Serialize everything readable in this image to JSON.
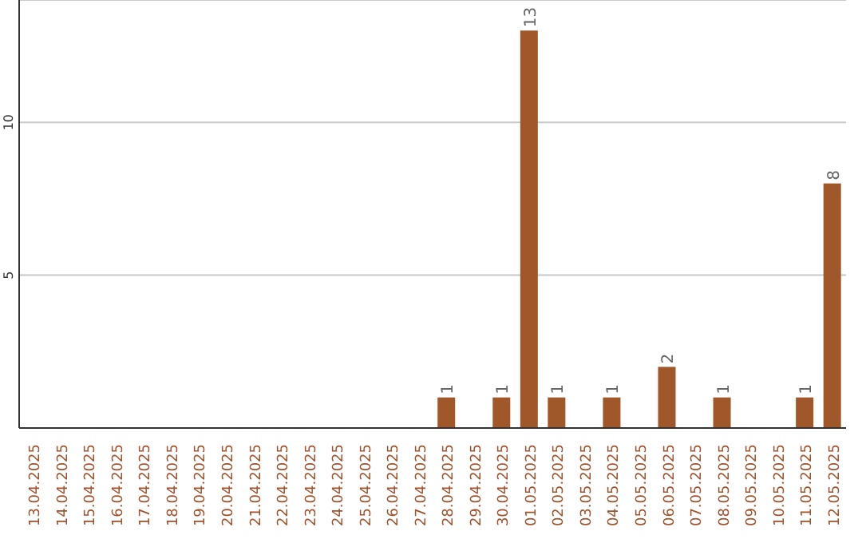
{
  "chart_data": {
    "type": "bar",
    "categories": [
      "13.04.2025",
      "14.04.2025",
      "15.04.2025",
      "16.04.2025",
      "17.04.2025",
      "18.04.2025",
      "19.04.2025",
      "20.04.2025",
      "21.04.2025",
      "22.04.2025",
      "23.04.2025",
      "24.04.2025",
      "25.04.2025",
      "26.04.2025",
      "27.04.2025",
      "28.04.2025",
      "29.04.2025",
      "30.04.2025",
      "01.05.2025",
      "02.05.2025",
      "03.05.2025",
      "04.05.2025",
      "05.05.2025",
      "06.05.2025",
      "07.05.2025",
      "08.05.2025",
      "09.05.2025",
      "10.05.2025",
      "11.05.2025",
      "12.05.2025"
    ],
    "values": [
      0,
      0,
      0,
      0,
      0,
      0,
      0,
      0,
      0,
      0,
      0,
      0,
      0,
      0,
      0,
      1,
      0,
      1,
      13,
      1,
      0,
      1,
      0,
      2,
      0,
      1,
      0,
      0,
      1,
      8
    ],
    "value_labels": [
      null,
      null,
      null,
      null,
      null,
      null,
      null,
      null,
      null,
      null,
      null,
      null,
      null,
      null,
      null,
      "1",
      null,
      "1",
      "13",
      "1",
      null,
      "1",
      null,
      "2",
      null,
      "1",
      null,
      null,
      "1",
      "8"
    ],
    "color": "#a0582a",
    "ylim": [
      0,
      14
    ],
    "yticks": [
      5,
      10
    ],
    "grid": "y"
  }
}
